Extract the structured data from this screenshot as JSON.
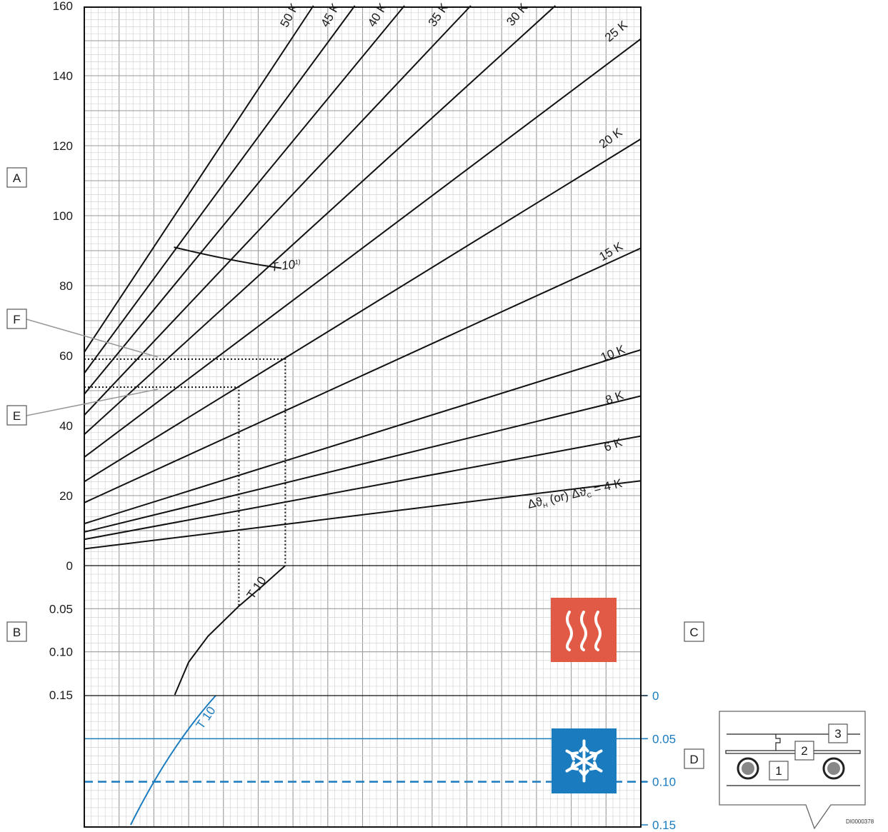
{
  "colors": {
    "heat": "#e05a45",
    "cool": "#1a7bbf",
    "line": "#111111",
    "grid": "#b5b5b5"
  },
  "icons": {
    "heating": "heating-waves-icon",
    "cooling": "snowflake-icon"
  },
  "panels": {
    "A": {
      "label": "A"
    },
    "B": {
      "label": "B"
    },
    "C": {
      "label": "C"
    },
    "D": {
      "label": "D"
    },
    "E": {
      "label": "E"
    },
    "F": {
      "label": "F"
    }
  },
  "chart_data": [
    {
      "type": "line",
      "panel": "A",
      "ylim": [
        0,
        160
      ],
      "y_ticks": [
        "160",
        "140",
        "120",
        "100",
        "80",
        "60",
        "40",
        "20",
        "0"
      ],
      "x_unlabeled": true,
      "series": [
        {
          "name": "Δϑ_H (or) Δϑ_C = 4 K",
          "label": "Δϑ (or) Δϑ = 4 K",
          "sub1": "H",
          "sub2": "C",
          "intercept": 4.8,
          "slope": 0.027
        },
        {
          "name": "6 K",
          "label": "6 K",
          "intercept": 7.5,
          "slope": 0.041
        },
        {
          "name": "8 K",
          "label": "8 K",
          "intercept": 9.6,
          "slope": 0.054
        },
        {
          "name": "10 K",
          "label": "10 K",
          "intercept": 12.0,
          "slope": 0.069
        },
        {
          "name": "15 K",
          "label": "15 K",
          "intercept": 18.0,
          "slope": 0.101
        },
        {
          "name": "20 K",
          "label": "20 K",
          "intercept": 24.0,
          "slope": 0.136
        },
        {
          "name": "25 K",
          "label": "25 K",
          "intercept": 31.0,
          "slope": 0.166
        },
        {
          "name": "30 K",
          "label": "30 K",
          "intercept": 37.5,
          "slope": 0.201
        },
        {
          "name": "35 K",
          "label": "35 K",
          "intercept": 43.0,
          "slope": 0.234
        },
        {
          "name": "40 K",
          "label": "40 K",
          "intercept": 49.0,
          "slope": 0.268
        },
        {
          "name": "45 K",
          "label": "45 K",
          "intercept": 55.0,
          "slope": 0.3
        },
        {
          "name": "50 K",
          "label": "50 K",
          "intercept": 61.0,
          "slope": 0.334
        }
      ],
      "limit_curve": {
        "name": "T 10",
        "label": "T 10",
        "superscript": "1)",
        "points": [
          [
            116,
            91
          ],
          [
            255,
            85
          ]
        ]
      },
      "reading_E": {
        "y": 51,
        "x_end": 200
      },
      "reading_F": {
        "y": 59,
        "x_end": 260
      }
    },
    {
      "type": "line",
      "panel": "B",
      "ylim": [
        0,
        0.15
      ],
      "y_ticks": [
        "0",
        "0.05",
        "0.10",
        "0.15"
      ],
      "series": [
        {
          "name": "T 10",
          "label": "T 10",
          "points": [
            [
              260,
              0
            ],
            [
              230,
              0.024
            ],
            [
              200,
              0.047
            ],
            [
              160,
              0.082
            ],
            [
              135,
              0.112
            ],
            [
              117,
              0.15
            ]
          ]
        }
      ]
    },
    {
      "type": "line",
      "panel": "D",
      "ylim": [
        0,
        0.15
      ],
      "y_ticks": [
        "0",
        "0.05",
        "0.10",
        "0.15"
      ],
      "series": [
        {
          "name": "T 10",
          "label": "T 10",
          "points": [
            [
              170,
              0
            ],
            [
              130,
              0.046
            ],
            [
              88,
              0.1
            ],
            [
              60,
              0.15
            ]
          ]
        }
      ],
      "hlines": [
        {
          "y": 0.05,
          "style": "solid"
        },
        {
          "y": 0.1,
          "style": "dashed"
        }
      ]
    }
  ],
  "inset": {
    "labels": [
      "1",
      "2",
      "3"
    ],
    "code": "DI0000378"
  }
}
